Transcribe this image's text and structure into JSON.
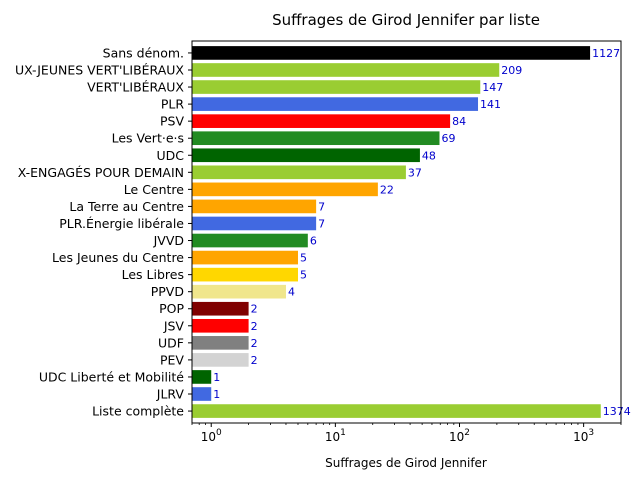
{
  "chart_data": {
    "type": "bar",
    "orientation": "horizontal",
    "title": "Suffrages de Girod Jennifer par liste",
    "xlabel": "Suffrages de Girod Jennifer",
    "ylabel": "",
    "xscale": "log",
    "xlim": [
      0.7,
      2000
    ],
    "grid": false,
    "xticks": [
      {
        "value": 1,
        "base": "10",
        "exp": "0"
      },
      {
        "value": 10,
        "base": "10",
        "exp": "1"
      },
      {
        "value": 100,
        "base": "10",
        "exp": "2"
      },
      {
        "value": 1000,
        "base": "10",
        "exp": "3"
      }
    ],
    "bars": [
      {
        "label": "Sans dénom.",
        "value": 1127,
        "color": "#000000"
      },
      {
        "label": "UX-JEUNES VERT'LIBÉRAUX",
        "value": 209,
        "color": "#9acd32"
      },
      {
        "label": "VERT'LIBÉRAUX",
        "value": 147,
        "color": "#9acd32"
      },
      {
        "label": "PLR",
        "value": 141,
        "color": "#4169e1"
      },
      {
        "label": "PSV",
        "value": 84,
        "color": "#ff0000"
      },
      {
        "label": "Les Vert·e·s",
        "value": 69,
        "color": "#228b22"
      },
      {
        "label": "UDC",
        "value": 48,
        "color": "#006400"
      },
      {
        "label": "X-ENGAGÉS POUR DEMAIN",
        "value": 37,
        "color": "#9acd32"
      },
      {
        "label": "Le Centre",
        "value": 22,
        "color": "#ffa500"
      },
      {
        "label": "La Terre au Centre",
        "value": 7,
        "color": "#ffa500"
      },
      {
        "label": "PLR.Énergie libérale",
        "value": 7,
        "color": "#4169e1"
      },
      {
        "label": "JVVD",
        "value": 6,
        "color": "#228b22"
      },
      {
        "label": "Les Jeunes du Centre",
        "value": 5,
        "color": "#ffa500"
      },
      {
        "label": "Les Libres",
        "value": 5,
        "color": "#ffd700"
      },
      {
        "label": "PPVD",
        "value": 4,
        "color": "#f0e68c"
      },
      {
        "label": "POP",
        "value": 2,
        "color": "#800000"
      },
      {
        "label": "JSV",
        "value": 2,
        "color": "#ff0000"
      },
      {
        "label": "UDF",
        "value": 2,
        "color": "#808080"
      },
      {
        "label": "PEV",
        "value": 2,
        "color": "#d3d3d3"
      },
      {
        "label": "UDC Liberté et Mobilité",
        "value": 1,
        "color": "#006400"
      },
      {
        "label": "JLRV",
        "value": 1,
        "color": "#4169e1"
      },
      {
        "label": "Liste complète",
        "value": 1374,
        "color": "#9acd32"
      }
    ]
  }
}
